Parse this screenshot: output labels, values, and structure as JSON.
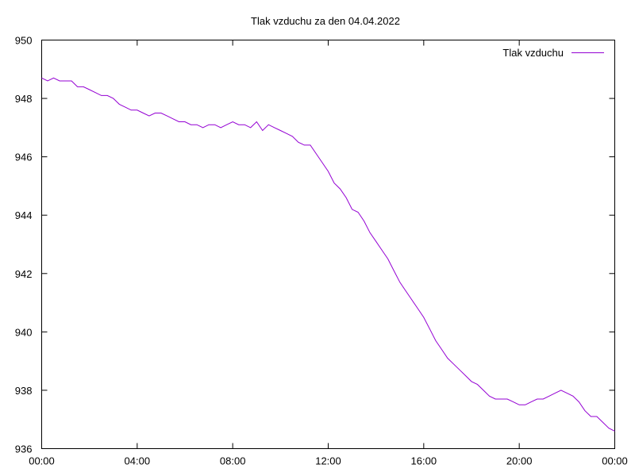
{
  "chart_data": {
    "type": "line",
    "title": "Tlak vzduchu za den 04.04.2022",
    "xlabel": "",
    "ylabel": "",
    "xlim": [
      0,
      24
    ],
    "ylim": [
      936,
      950
    ],
    "grid": false,
    "legend_position": "top-right",
    "x_ticks": [
      {
        "value": 0,
        "label": "00:00"
      },
      {
        "value": 4,
        "label": "04:00"
      },
      {
        "value": 8,
        "label": "08:00"
      },
      {
        "value": 12,
        "label": "12:00"
      },
      {
        "value": 16,
        "label": "16:00"
      },
      {
        "value": 20,
        "label": "20:00"
      },
      {
        "value": 24,
        "label": "00:00"
      }
    ],
    "y_ticks": [
      {
        "value": 936,
        "label": "936"
      },
      {
        "value": 938,
        "label": "938"
      },
      {
        "value": 940,
        "label": "940"
      },
      {
        "value": 942,
        "label": "942"
      },
      {
        "value": 944,
        "label": "944"
      },
      {
        "value": 946,
        "label": "946"
      },
      {
        "value": 948,
        "label": "948"
      },
      {
        "value": 950,
        "label": "950"
      }
    ],
    "series": [
      {
        "name": "Tlak vzduchu",
        "color": "#9400d3",
        "points": [
          [
            0.0,
            948.7
          ],
          [
            0.25,
            948.6
          ],
          [
            0.5,
            948.7
          ],
          [
            0.75,
            948.6
          ],
          [
            1.0,
            948.6
          ],
          [
            1.25,
            948.6
          ],
          [
            1.5,
            948.4
          ],
          [
            1.75,
            948.4
          ],
          [
            2.0,
            948.3
          ],
          [
            2.25,
            948.2
          ],
          [
            2.5,
            948.1
          ],
          [
            2.75,
            948.1
          ],
          [
            3.0,
            948.0
          ],
          [
            3.25,
            947.8
          ],
          [
            3.5,
            947.7
          ],
          [
            3.75,
            947.6
          ],
          [
            4.0,
            947.6
          ],
          [
            4.25,
            947.5
          ],
          [
            4.5,
            947.4
          ],
          [
            4.75,
            947.5
          ],
          [
            5.0,
            947.5
          ],
          [
            5.25,
            947.4
          ],
          [
            5.5,
            947.3
          ],
          [
            5.75,
            947.2
          ],
          [
            6.0,
            947.2
          ],
          [
            6.25,
            947.1
          ],
          [
            6.5,
            947.1
          ],
          [
            6.75,
            947.0
          ],
          [
            7.0,
            947.1
          ],
          [
            7.25,
            947.1
          ],
          [
            7.5,
            947.0
          ],
          [
            7.75,
            947.1
          ],
          [
            8.0,
            947.2
          ],
          [
            8.25,
            947.1
          ],
          [
            8.5,
            947.1
          ],
          [
            8.75,
            947.0
          ],
          [
            9.0,
            947.2
          ],
          [
            9.25,
            946.9
          ],
          [
            9.5,
            947.1
          ],
          [
            9.75,
            947.0
          ],
          [
            10.0,
            946.9
          ],
          [
            10.25,
            946.8
          ],
          [
            10.5,
            946.7
          ],
          [
            10.75,
            946.5
          ],
          [
            11.0,
            946.4
          ],
          [
            11.25,
            946.4
          ],
          [
            11.5,
            946.1
          ],
          [
            11.75,
            945.8
          ],
          [
            12.0,
            945.5
          ],
          [
            12.25,
            945.1
          ],
          [
            12.5,
            944.9
          ],
          [
            12.75,
            944.6
          ],
          [
            13.0,
            944.2
          ],
          [
            13.25,
            944.1
          ],
          [
            13.5,
            943.8
          ],
          [
            13.75,
            943.4
          ],
          [
            14.0,
            943.1
          ],
          [
            14.25,
            942.8
          ],
          [
            14.5,
            942.5
          ],
          [
            14.75,
            942.1
          ],
          [
            15.0,
            941.7
          ],
          [
            15.25,
            941.4
          ],
          [
            15.5,
            941.1
          ],
          [
            15.75,
            940.8
          ],
          [
            16.0,
            940.5
          ],
          [
            16.25,
            940.1
          ],
          [
            16.5,
            939.7
          ],
          [
            16.75,
            939.4
          ],
          [
            17.0,
            939.1
          ],
          [
            17.25,
            938.9
          ],
          [
            17.5,
            938.7
          ],
          [
            17.75,
            938.5
          ],
          [
            18.0,
            938.3
          ],
          [
            18.25,
            938.2
          ],
          [
            18.5,
            938.0
          ],
          [
            18.75,
            937.8
          ],
          [
            19.0,
            937.7
          ],
          [
            19.25,
            937.7
          ],
          [
            19.5,
            937.7
          ],
          [
            19.75,
            937.6
          ],
          [
            20.0,
            937.5
          ],
          [
            20.25,
            937.5
          ],
          [
            20.5,
            937.6
          ],
          [
            20.75,
            937.7
          ],
          [
            21.0,
            937.7
          ],
          [
            21.25,
            937.8
          ],
          [
            21.5,
            937.9
          ],
          [
            21.75,
            938.0
          ],
          [
            22.0,
            937.9
          ],
          [
            22.25,
            937.8
          ],
          [
            22.5,
            937.6
          ],
          [
            22.75,
            937.3
          ],
          [
            23.0,
            937.1
          ],
          [
            23.25,
            937.1
          ],
          [
            23.5,
            936.9
          ],
          [
            23.75,
            936.7
          ],
          [
            24.0,
            936.6
          ]
        ]
      }
    ]
  }
}
